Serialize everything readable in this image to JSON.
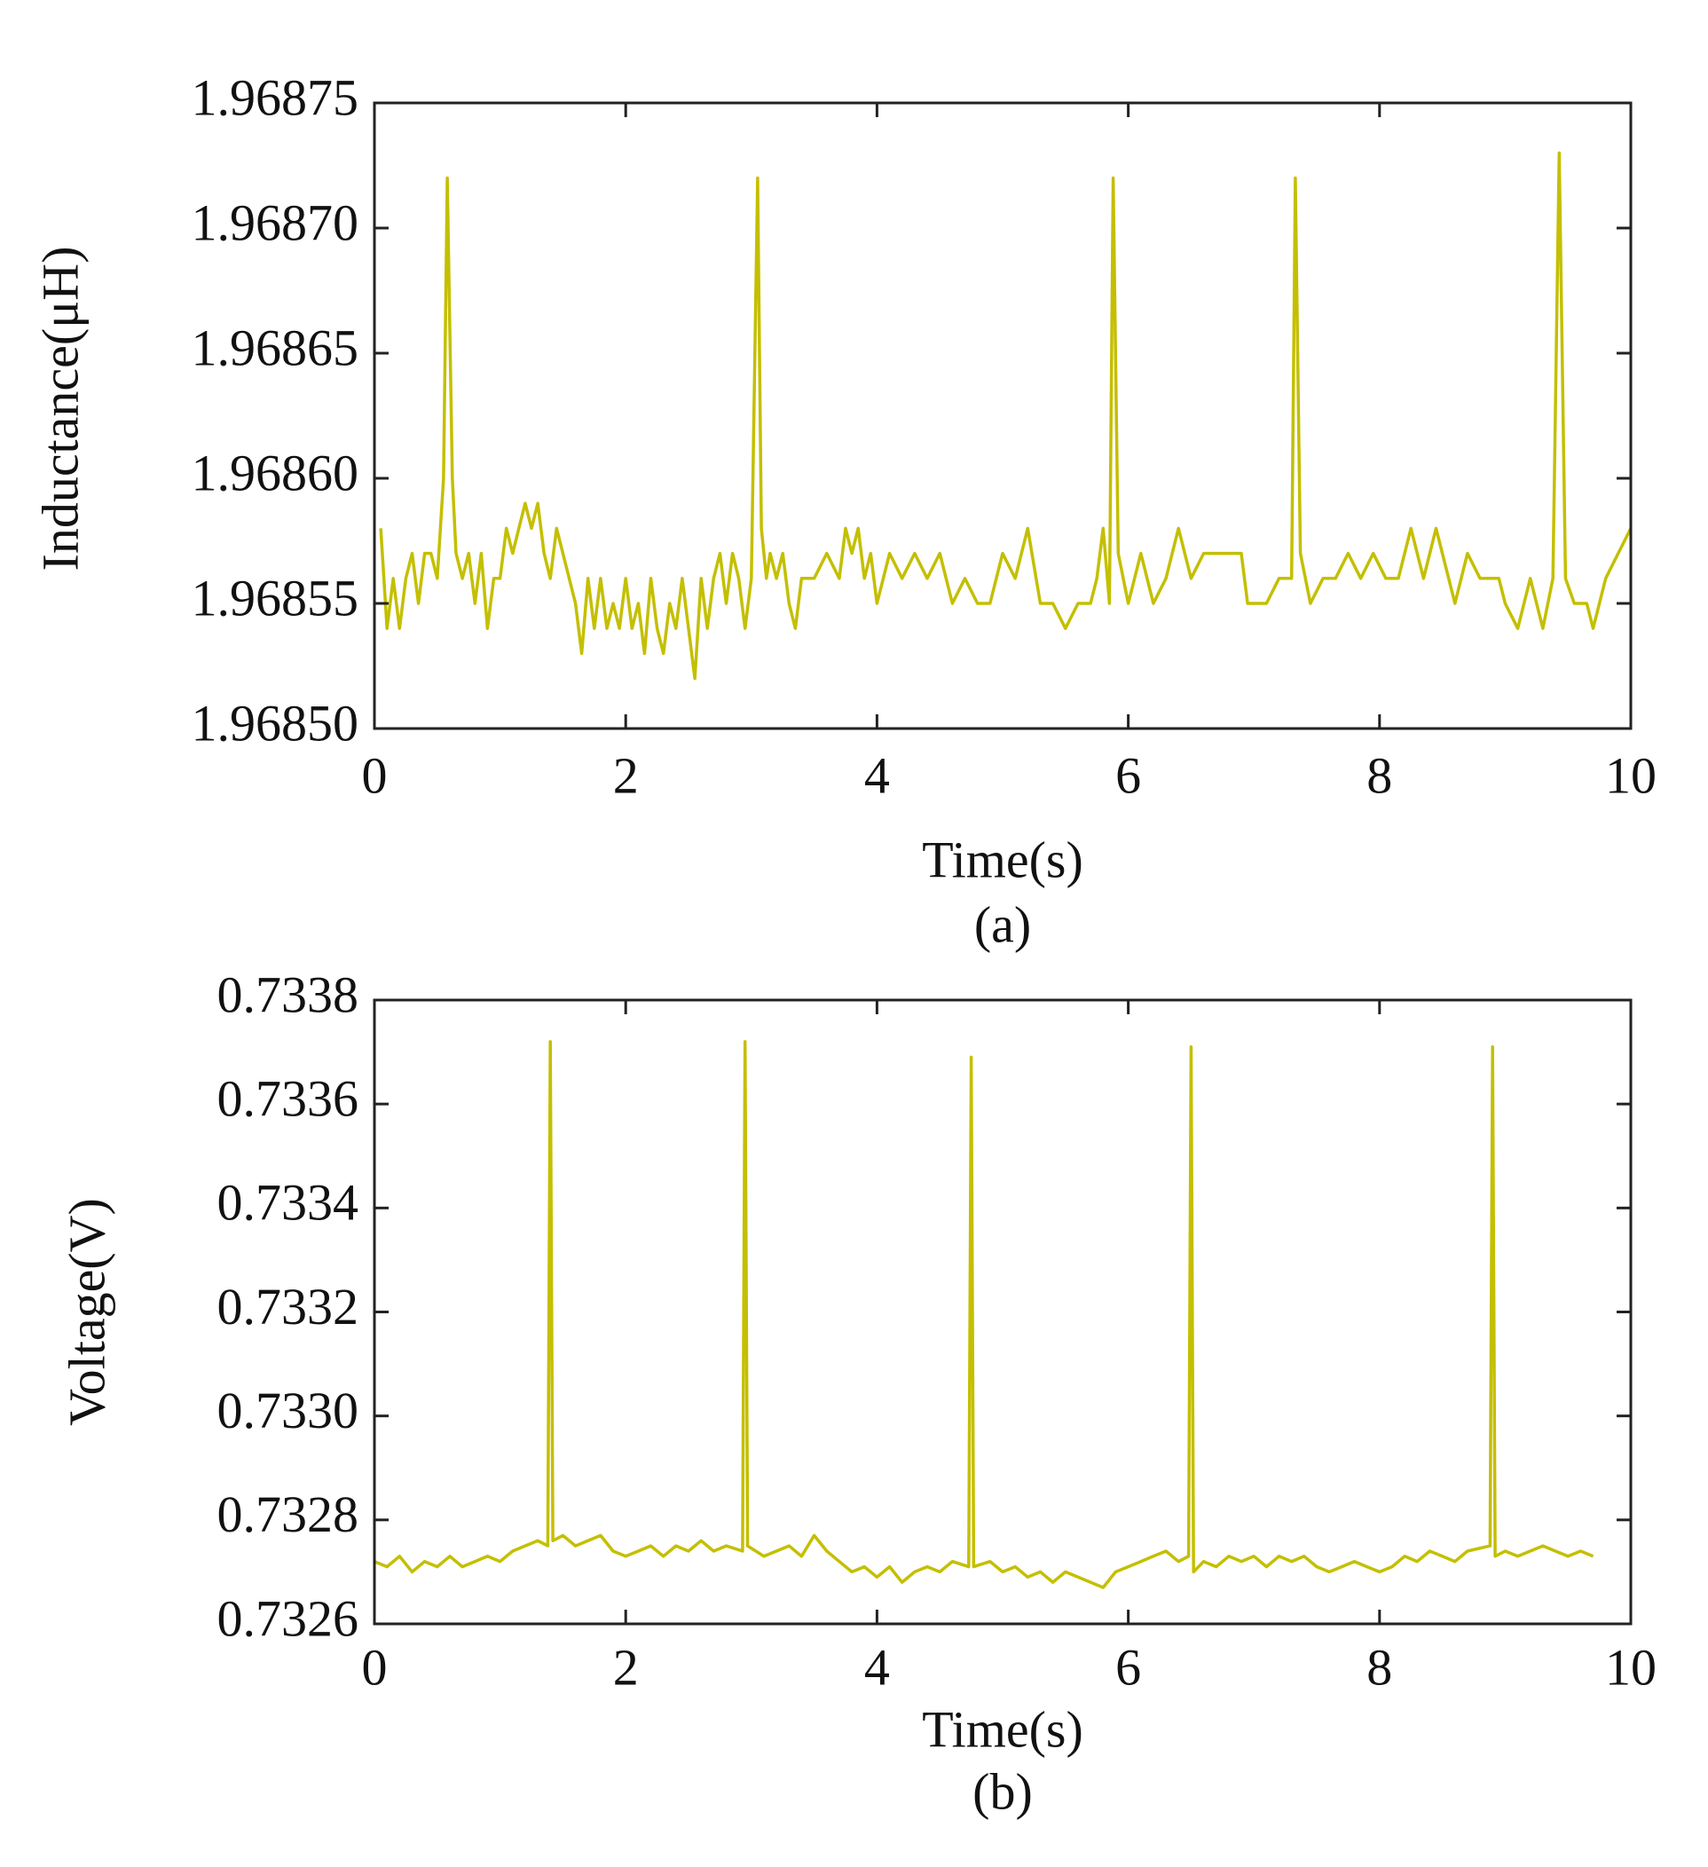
{
  "chart_data": [
    {
      "type": "line",
      "xlabel": "Time(s)",
      "ylabel": "Inductance(μH)",
      "caption": "(a)",
      "color": "#c4bf00",
      "xlim": [
        0,
        10
      ],
      "xticks": [
        0,
        2,
        4,
        6,
        8,
        10
      ],
      "ylim": [
        1.9685,
        1.96875
      ],
      "yticks": [
        {
          "value": 1.9685,
          "label": "1.96850"
        },
        1.96855,
        {
          "value": 1.9686,
          "label": "1.96860"
        },
        1.96865,
        {
          "value": 1.9687,
          "label": "1.96870"
        },
        1.96875
      ],
      "x": [
        0.05,
        0.1,
        0.15,
        0.2,
        0.25,
        0.3,
        0.35,
        0.4,
        0.45,
        0.5,
        0.55,
        0.58,
        0.62,
        0.65,
        0.7,
        0.75,
        0.8,
        0.85,
        0.9,
        0.95,
        1.0,
        1.05,
        1.1,
        1.15,
        1.2,
        1.25,
        1.3,
        1.35,
        1.4,
        1.45,
        1.5,
        1.55,
        1.6,
        1.65,
        1.7,
        1.75,
        1.8,
        1.85,
        1.9,
        1.95,
        2.0,
        2.05,
        2.1,
        2.15,
        2.2,
        2.25,
        2.3,
        2.35,
        2.4,
        2.45,
        2.5,
        2.55,
        2.6,
        2.65,
        2.7,
        2.75,
        2.8,
        2.85,
        2.9,
        2.95,
        3.0,
        3.05,
        3.08,
        3.12,
        3.15,
        3.2,
        3.25,
        3.3,
        3.35,
        3.4,
        3.5,
        3.6,
        3.7,
        3.75,
        3.8,
        3.85,
        3.9,
        3.95,
        4.0,
        4.1,
        4.2,
        4.3,
        4.4,
        4.5,
        4.6,
        4.7,
        4.8,
        4.9,
        5.0,
        5.1,
        5.2,
        5.3,
        5.4,
        5.5,
        5.6,
        5.7,
        5.75,
        5.8,
        5.85,
        5.88,
        5.92,
        6.0,
        6.1,
        6.2,
        6.3,
        6.4,
        6.5,
        6.6,
        6.7,
        6.8,
        6.9,
        6.95,
        7.0,
        7.1,
        7.2,
        7.3,
        7.33,
        7.37,
        7.45,
        7.55,
        7.65,
        7.75,
        7.85,
        7.95,
        8.05,
        8.15,
        8.25,
        8.35,
        8.45,
        8.5,
        8.6,
        8.7,
        8.8,
        8.9,
        8.95,
        9.0,
        9.1,
        9.2,
        9.3,
        9.38,
        9.43,
        9.48,
        9.55,
        9.65,
        9.7,
        9.8,
        9.9,
        10.0
      ],
      "values": [
        1.96858,
        1.96854,
        1.96856,
        1.96854,
        1.96856,
        1.96857,
        1.96855,
        1.96857,
        1.96857,
        1.96856,
        1.9686,
        1.96872,
        1.9686,
        1.96857,
        1.96856,
        1.96857,
        1.96855,
        1.96857,
        1.96854,
        1.96856,
        1.96856,
        1.96858,
        1.96857,
        1.96858,
        1.96859,
        1.96858,
        1.96859,
        1.96857,
        1.96856,
        1.96858,
        1.96857,
        1.96856,
        1.96855,
        1.96853,
        1.96856,
        1.96854,
        1.96856,
        1.96854,
        1.96855,
        1.96854,
        1.96856,
        1.96854,
        1.96855,
        1.96853,
        1.96856,
        1.96854,
        1.96853,
        1.96855,
        1.96854,
        1.96856,
        1.96854,
        1.96852,
        1.96856,
        1.96854,
        1.96856,
        1.96857,
        1.96855,
        1.96857,
        1.96856,
        1.96854,
        1.96856,
        1.96872,
        1.96858,
        1.96856,
        1.96857,
        1.96856,
        1.96857,
        1.96855,
        1.96854,
        1.96856,
        1.96856,
        1.96857,
        1.96856,
        1.96858,
        1.96857,
        1.96858,
        1.96856,
        1.96857,
        1.96855,
        1.96857,
        1.96856,
        1.96857,
        1.96856,
        1.96857,
        1.96855,
        1.96856,
        1.96855,
        1.96855,
        1.96857,
        1.96856,
        1.96858,
        1.96855,
        1.96855,
        1.96854,
        1.96855,
        1.96855,
        1.96856,
        1.96858,
        1.96855,
        1.96872,
        1.96857,
        1.96855,
        1.96857,
        1.96855,
        1.96856,
        1.96858,
        1.96856,
        1.96857,
        1.96857,
        1.96857,
        1.96857,
        1.96855,
        1.96855,
        1.96855,
        1.96856,
        1.96856,
        1.96872,
        1.96857,
        1.96855,
        1.96856,
        1.96856,
        1.96857,
        1.96856,
        1.96857,
        1.96856,
        1.96856,
        1.96858,
        1.96856,
        1.96858,
        1.96857,
        1.96855,
        1.96857,
        1.96856,
        1.96856,
        1.96856,
        1.96855,
        1.96854,
        1.96856,
        1.96854,
        1.96856,
        1.96873,
        1.96856,
        1.96855,
        1.96855,
        1.96854,
        1.96856,
        1.96857,
        1.96858
      ]
    },
    {
      "type": "line",
      "xlabel": "Time(s)",
      "ylabel": "Voltage(V)",
      "caption": "(b)",
      "color": "#c4bf00",
      "xlim": [
        0,
        10
      ],
      "xticks": [
        0,
        2,
        4,
        6,
        8,
        10
      ],
      "ylim": [
        0.7326,
        0.7338
      ],
      "yticks": [
        0.7326,
        0.7328,
        {
          "value": 0.733,
          "label": "0.7330"
        },
        0.7332,
        0.7334,
        0.7336,
        0.7338
      ],
      "x": [
        0.0,
        0.1,
        0.2,
        0.3,
        0.4,
        0.5,
        0.6,
        0.7,
        0.8,
        0.9,
        1.0,
        1.1,
        1.2,
        1.3,
        1.38,
        1.4,
        1.42,
        1.5,
        1.6,
        1.7,
        1.8,
        1.9,
        2.0,
        2.1,
        2.2,
        2.3,
        2.4,
        2.5,
        2.6,
        2.7,
        2.8,
        2.93,
        2.95,
        2.97,
        3.1,
        3.2,
        3.3,
        3.4,
        3.5,
        3.6,
        3.7,
        3.8,
        3.9,
        4.0,
        4.1,
        4.2,
        4.3,
        4.4,
        4.5,
        4.6,
        4.73,
        4.75,
        4.77,
        4.9,
        5.0,
        5.1,
        5.2,
        5.3,
        5.4,
        5.5,
        5.6,
        5.7,
        5.8,
        5.9,
        6.0,
        6.1,
        6.2,
        6.3,
        6.4,
        6.48,
        6.5,
        6.52,
        6.6,
        6.7,
        6.8,
        6.9,
        7.0,
        7.1,
        7.2,
        7.3,
        7.4,
        7.5,
        7.6,
        7.7,
        7.8,
        7.9,
        8.0,
        8.1,
        8.2,
        8.3,
        8.4,
        8.5,
        8.6,
        8.7,
        8.88,
        8.9,
        8.92,
        9.0,
        9.1,
        9.2,
        9.3,
        9.4,
        9.5,
        9.6,
        9.7
      ],
      "values": [
        0.73272,
        0.73271,
        0.73273,
        0.7327,
        0.73272,
        0.73271,
        0.73273,
        0.73271,
        0.73272,
        0.73273,
        0.73272,
        0.73274,
        0.73275,
        0.73276,
        0.73275,
        0.73372,
        0.73276,
        0.73277,
        0.73275,
        0.73276,
        0.73277,
        0.73274,
        0.73273,
        0.73274,
        0.73275,
        0.73273,
        0.73275,
        0.73274,
        0.73276,
        0.73274,
        0.73275,
        0.73274,
        0.73372,
        0.73275,
        0.73273,
        0.73274,
        0.73275,
        0.73273,
        0.73277,
        0.73274,
        0.73272,
        0.7327,
        0.73271,
        0.73269,
        0.73271,
        0.73268,
        0.7327,
        0.73271,
        0.7327,
        0.73272,
        0.73271,
        0.73369,
        0.73271,
        0.73272,
        0.7327,
        0.73271,
        0.73269,
        0.7327,
        0.73268,
        0.7327,
        0.73269,
        0.73268,
        0.73267,
        0.7327,
        0.73271,
        0.73272,
        0.73273,
        0.73274,
        0.73272,
        0.73273,
        0.73371,
        0.7327,
        0.73272,
        0.73271,
        0.73273,
        0.73272,
        0.73273,
        0.73271,
        0.73273,
        0.73272,
        0.73273,
        0.73271,
        0.7327,
        0.73271,
        0.73272,
        0.73271,
        0.7327,
        0.73271,
        0.73273,
        0.73272,
        0.73274,
        0.73273,
        0.73272,
        0.73274,
        0.73275,
        0.73371,
        0.73273,
        0.73274,
        0.73273,
        0.73274,
        0.73275,
        0.73274,
        0.73273,
        0.73274,
        0.73273
      ]
    }
  ]
}
